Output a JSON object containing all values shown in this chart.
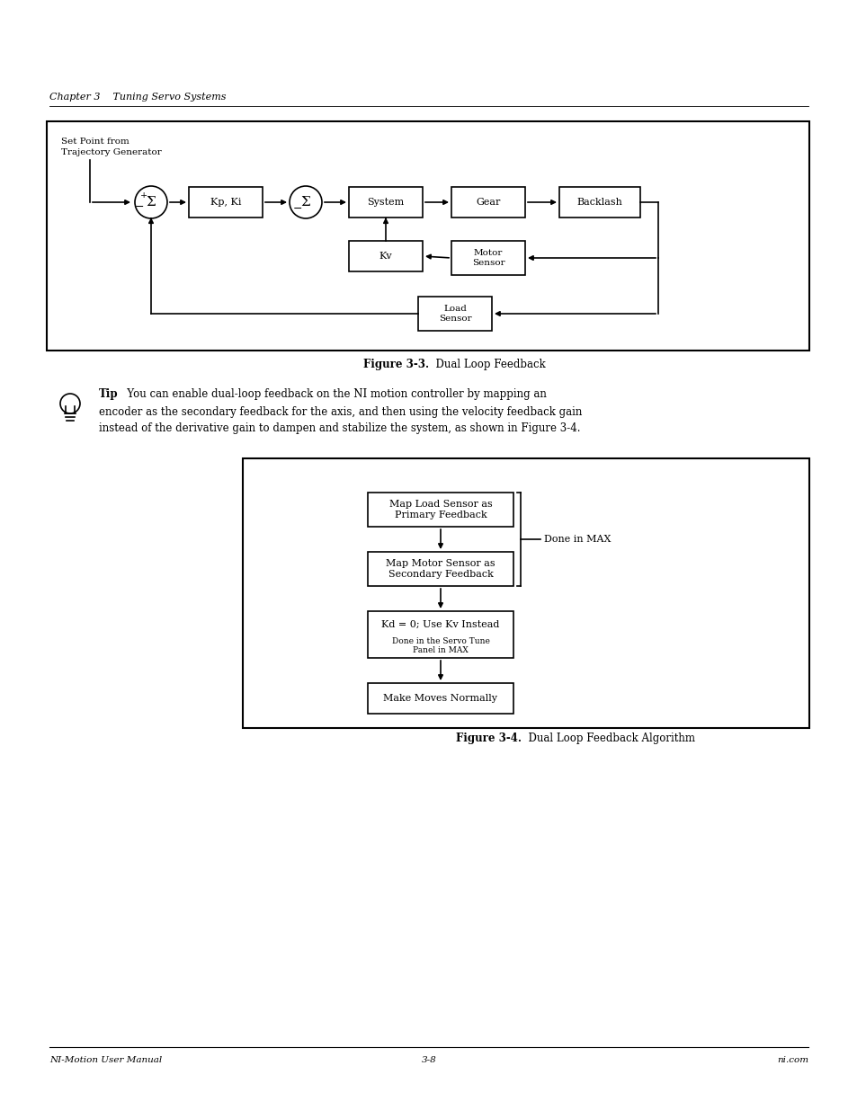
{
  "bg_color": "#ffffff",
  "page_width": 9.54,
  "page_height": 12.35,
  "header_text": "Chapter 3    Tuning Servo Systems",
  "fig1_caption_bold": "Figure 3-3.",
  "fig1_caption_normal": "  Dual Loop Feedback",
  "fig2_caption_bold": "Figure 3-4.",
  "fig2_caption_normal": "  Dual Loop Feedback Algorithm",
  "footer_left": "NI-Motion User Manual",
  "footer_center": "3-8",
  "footer_right": "ni.com"
}
